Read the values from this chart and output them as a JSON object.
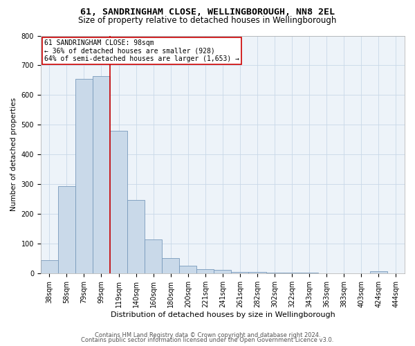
{
  "title1": "61, SANDRINGHAM CLOSE, WELLINGBOROUGH, NN8 2EL",
  "title2": "Size of property relative to detached houses in Wellingborough",
  "xlabel": "Distribution of detached houses by size in Wellingborough",
  "ylabel": "Number of detached properties",
  "categories": [
    "38sqm",
    "58sqm",
    "79sqm",
    "99sqm",
    "119sqm",
    "140sqm",
    "160sqm",
    "180sqm",
    "200sqm",
    "221sqm",
    "241sqm",
    "261sqm",
    "282sqm",
    "302sqm",
    "322sqm",
    "343sqm",
    "363sqm",
    "383sqm",
    "403sqm",
    "424sqm",
    "444sqm"
  ],
  "values": [
    46,
    295,
    655,
    665,
    480,
    248,
    115,
    52,
    26,
    15,
    13,
    5,
    5,
    3,
    3,
    2,
    1,
    0,
    0,
    7,
    1
  ],
  "bar_color": "#c9d9e9",
  "bar_edge_color": "#7799bb",
  "vline_color": "#cc0000",
  "annotation_box_text": "61 SANDRINGHAM CLOSE: 98sqm\n← 36% of detached houses are smaller (928)\n64% of semi-detached houses are larger (1,653) →",
  "annotation_box_edge_color": "#cc0000",
  "ylim": [
    0,
    800
  ],
  "yticks": [
    0,
    100,
    200,
    300,
    400,
    500,
    600,
    700,
    800
  ],
  "title1_fontsize": 9.5,
  "title2_fontsize": 8.5,
  "xlabel_fontsize": 8,
  "ylabel_fontsize": 7.5,
  "tick_fontsize": 7,
  "annotation_fontsize": 7,
  "footer1": "Contains HM Land Registry data © Crown copyright and database right 2024.",
  "footer2": "Contains public sector information licensed under the Open Government Licence v3.0.",
  "footer_fontsize": 6,
  "background_color": "#ffffff",
  "grid_color": "#c8d8e8",
  "plot_bg_color": "#edf3f9"
}
